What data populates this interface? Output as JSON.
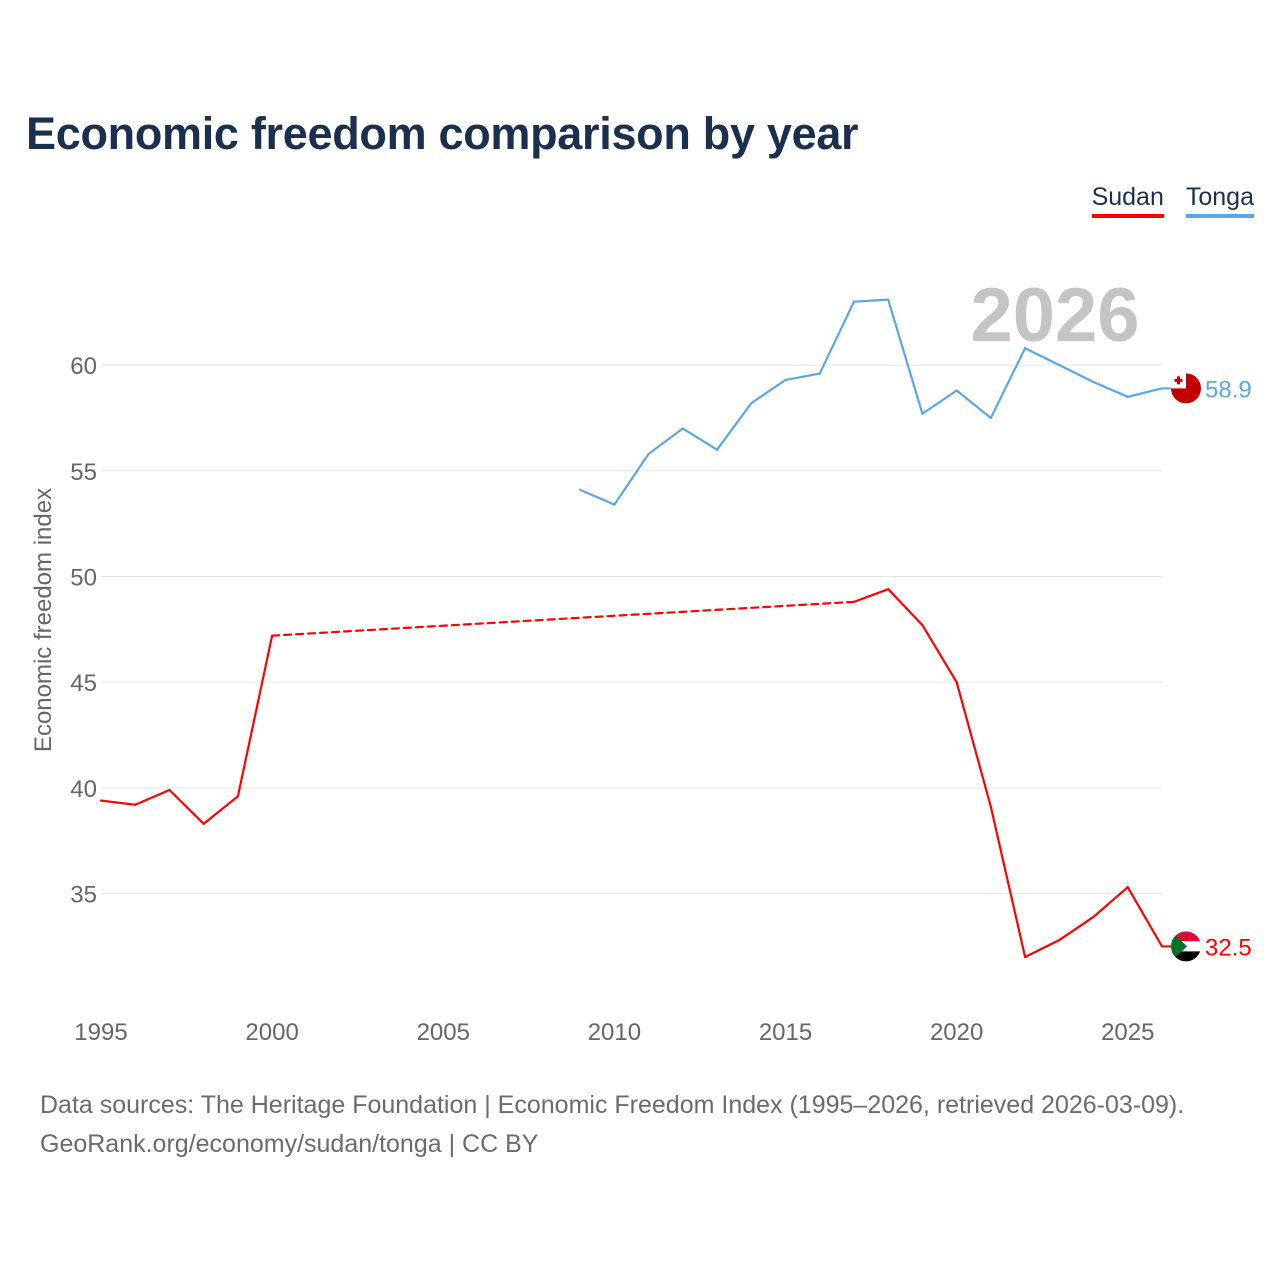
{
  "title": "Economic freedom comparison by year",
  "legend": [
    {
      "name": "Sudan",
      "color": "#ff0000"
    },
    {
      "name": "Tonga",
      "color": "#5aa6e6"
    }
  ],
  "footer": {
    "line1": "Data sources: The Heritage Foundation | Economic Freedom Index (1995–2026, retrieved 2026-03-09).",
    "line2": "GeoRank.org/economy/sudan/tonga | CC BY"
  },
  "chart_data": {
    "type": "line",
    "title": "Economic freedom comparison by year",
    "ylabel": "Economic freedom index",
    "xlabel": "",
    "year_overlay": "2026",
    "xlim": [
      1995,
      2026
    ],
    "ylim": [
      30.2,
      64.5
    ],
    "x_ticks": [
      1995,
      2000,
      2005,
      2010,
      2015,
      2020,
      2025
    ],
    "y_ticks": [
      35,
      40,
      45,
      50,
      55,
      60
    ],
    "grid": true,
    "series": [
      {
        "name": "Sudan",
        "color": "#ff0000",
        "end_label": "32.5",
        "flag": "sudan-flag",
        "points": [
          [
            1995,
            39.4
          ],
          [
            1996,
            39.2
          ],
          [
            1997,
            39.9
          ],
          [
            1998,
            38.3
          ],
          [
            1999,
            39.6
          ],
          [
            2000,
            47.2
          ],
          [
            2017,
            48.8
          ],
          [
            2018,
            49.4
          ],
          [
            2019,
            47.7
          ],
          [
            2020,
            45.0
          ],
          [
            2021,
            39.1
          ],
          [
            2022,
            32.0
          ],
          [
            2023,
            32.8
          ],
          [
            2024,
            33.9
          ],
          [
            2025,
            35.3
          ],
          [
            2026,
            32.5
          ]
        ],
        "dashed_segments": [
          [
            2000,
            2017
          ]
        ]
      },
      {
        "name": "Tonga",
        "color": "#5aa6e6",
        "end_label": "58.9",
        "flag": "tonga-flag",
        "points": [
          [
            2009,
            54.1
          ],
          [
            2010,
            53.4
          ],
          [
            2011,
            55.8
          ],
          [
            2012,
            57.0
          ],
          [
            2013,
            56.0
          ],
          [
            2014,
            58.2
          ],
          [
            2015,
            59.3
          ],
          [
            2016,
            59.6
          ],
          [
            2017,
            63.0
          ],
          [
            2018,
            63.1
          ],
          [
            2019,
            57.7
          ],
          [
            2020,
            58.8
          ],
          [
            2021,
            57.5
          ],
          [
            2022,
            60.8
          ],
          [
            2023,
            60.0
          ],
          [
            2024,
            59.2
          ],
          [
            2025,
            58.5
          ],
          [
            2026,
            58.9
          ]
        ],
        "dashed_segments": []
      }
    ]
  }
}
